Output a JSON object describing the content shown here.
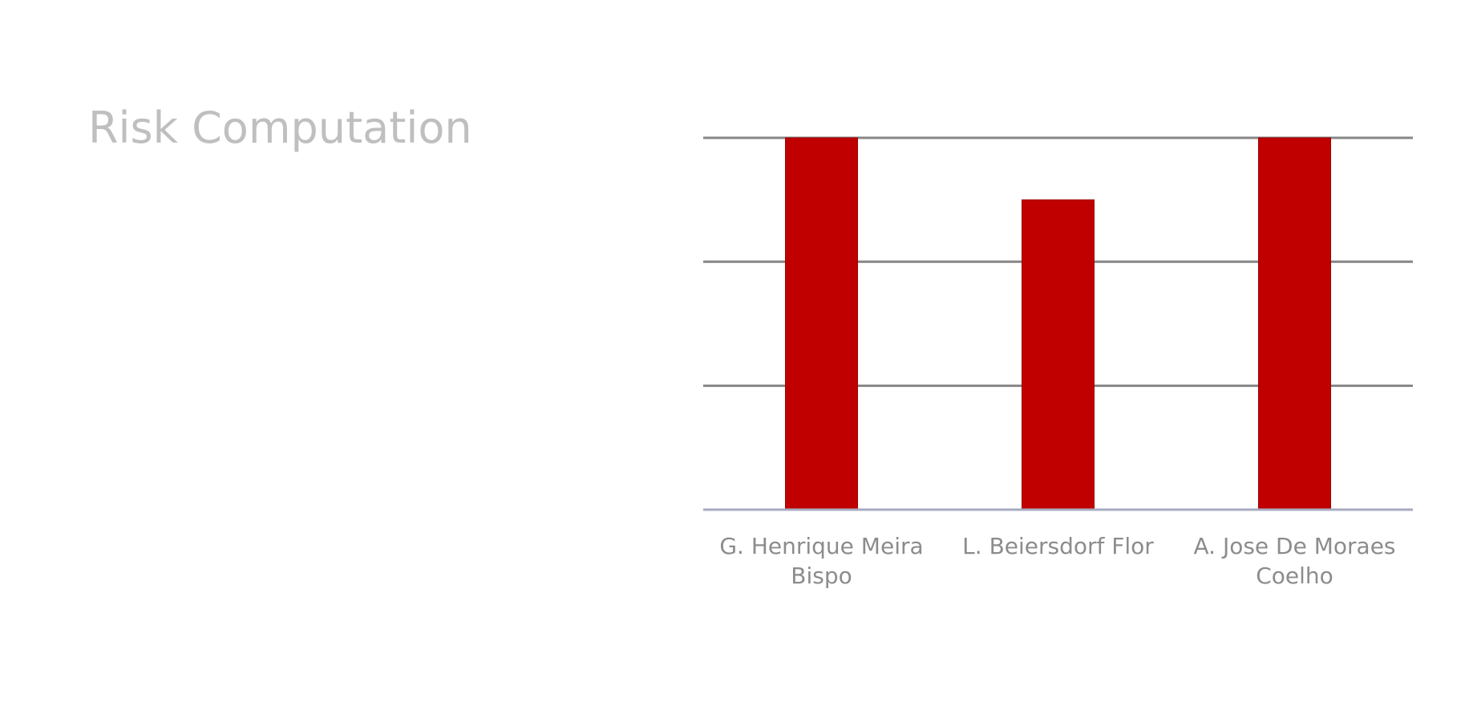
{
  "page": {
    "title": "Risk Computation"
  },
  "chart_data": {
    "type": "bar",
    "title": "",
    "xlabel": "",
    "ylabel": "",
    "categories": [
      "G. Henrique Meira Bispo",
      "L. Beiersdorf Flor",
      "A. Jose De Moraes Coelho"
    ],
    "values": [
      3,
      2.5,
      3
    ],
    "ylim": [
      0,
      3
    ],
    "yticks": [
      0,
      1,
      2,
      3
    ],
    "show_ytick_labels": false,
    "grid": true,
    "legend": "none",
    "colors": {
      "bar": "#c00000",
      "bar_edge": "#a00000",
      "grid": "#878787",
      "baseline": "#a6abc0",
      "title": "#bfbfbf",
      "category_text": "#8c8c8c"
    }
  }
}
